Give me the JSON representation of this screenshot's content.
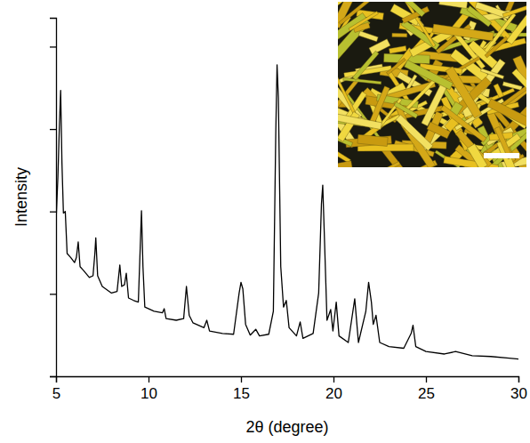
{
  "chart_data": {
    "type": "line",
    "x_label": "2θ (degree)",
    "y_label": "Intensity",
    "x": [
      5.0,
      5.1,
      5.18,
      5.25,
      5.32,
      5.4,
      5.5,
      5.6,
      5.8,
      6.0,
      6.1,
      6.2,
      6.3,
      6.5,
      6.8,
      7.0,
      7.1,
      7.15,
      7.25,
      7.5,
      8.0,
      8.3,
      8.45,
      8.55,
      8.7,
      8.8,
      8.92,
      9.2,
      9.45,
      9.55,
      9.62,
      9.7,
      9.8,
      10.3,
      10.75,
      10.85,
      10.95,
      11.5,
      11.9,
      12.05,
      12.2,
      12.4,
      13.0,
      13.15,
      13.3,
      14.0,
      14.6,
      14.9,
      15.0,
      15.1,
      15.25,
      15.5,
      15.8,
      16.0,
      16.5,
      16.75,
      16.88,
      16.95,
      17.02,
      17.15,
      17.3,
      17.45,
      17.6,
      18.0,
      18.2,
      18.35,
      18.9,
      19.2,
      19.35,
      19.42,
      19.5,
      19.65,
      19.85,
      19.97,
      20.15,
      20.3,
      20.8,
      21.15,
      21.35,
      21.75,
      21.9,
      22.05,
      22.15,
      22.3,
      22.5,
      23.0,
      23.8,
      24.2,
      24.3,
      24.45,
      25.0,
      26.0,
      26.6,
      27.5,
      28.5,
      29.5,
      30.0
    ],
    "series": [
      {
        "values": [
          1.87,
          2.41,
          3.02,
          3.47,
          2.59,
          1.98,
          2.0,
          1.49,
          1.44,
          1.38,
          1.44,
          1.63,
          1.33,
          1.28,
          1.2,
          1.22,
          1.49,
          1.68,
          1.22,
          1.09,
          1.01,
          1.03,
          1.35,
          1.09,
          1.11,
          1.25,
          0.95,
          0.92,
          0.9,
          1.55,
          2.01,
          1.33,
          0.84,
          0.79,
          0.77,
          0.82,
          0.7,
          0.68,
          0.7,
          1.09,
          0.74,
          0.65,
          0.59,
          0.68,
          0.55,
          0.52,
          0.51,
          1.01,
          1.14,
          1.06,
          0.63,
          0.5,
          0.57,
          0.49,
          0.51,
          0.79,
          2.95,
          3.78,
          3.38,
          1.33,
          0.84,
          0.92,
          0.59,
          0.49,
          0.66,
          0.46,
          0.52,
          1.01,
          2.09,
          2.32,
          1.76,
          0.68,
          0.81,
          0.55,
          0.9,
          0.49,
          0.41,
          0.94,
          0.41,
          0.79,
          1.14,
          0.9,
          0.63,
          0.74,
          0.41,
          0.36,
          0.34,
          0.52,
          0.62,
          0.36,
          0.3,
          0.27,
          0.3,
          0.25,
          0.24,
          0.22,
          0.21
        ]
      }
    ],
    "color": "#000000",
    "xlim": [
      5,
      30
    ],
    "xticks": [
      5,
      10,
      15,
      20,
      25,
      30
    ],
    "ylim": [
      0,
      4.35
    ],
    "yticks": [
      0,
      1,
      2,
      3,
      4
    ],
    "tick_labels": "x",
    "grid": false
  }
}
